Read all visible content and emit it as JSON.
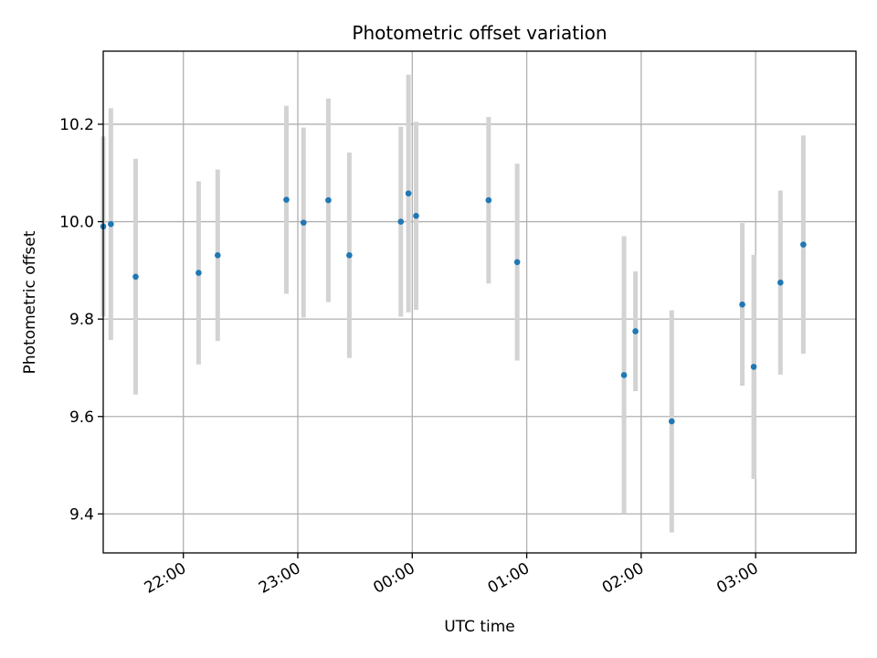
{
  "chart_data": {
    "type": "scatter",
    "title": "Photometric offset variation",
    "xlabel": "UTC time",
    "ylabel": "Photometric offset",
    "x_tick_labels": [
      "22:00",
      "23:00",
      "00:00",
      "01:00",
      "02:00",
      "03:00"
    ],
    "y_ticks": [
      9.4,
      9.6,
      9.8,
      10.0,
      10.2
    ],
    "y_tick_labels": [
      "9.4",
      "9.6",
      "9.8",
      "10.0",
      "10.2"
    ],
    "x_range": [
      "21:27",
      "03:52"
    ],
    "ylim": [
      9.32,
      10.35
    ],
    "grid": true,
    "colors": {
      "point": "#1f77b4",
      "errorbar": "#d3d3d3"
    },
    "series": [
      {
        "points": [
          {
            "t": "21:18",
            "y": 9.99,
            "err": 0.185
          },
          {
            "t": "21:22",
            "y": 9.995,
            "err": 0.238
          },
          {
            "t": "21:35",
            "y": 9.887,
            "err": 0.242
          },
          {
            "t": "22:08",
            "y": 9.895,
            "err": 0.188
          },
          {
            "t": "22:18",
            "y": 9.931,
            "err": 0.176
          },
          {
            "t": "22:54",
            "y": 10.045,
            "err": 0.193
          },
          {
            "t": "23:03",
            "y": 9.998,
            "err": 0.195
          },
          {
            "t": "23:16",
            "y": 10.044,
            "err": 0.209
          },
          {
            "t": "23:27",
            "y": 9.931,
            "err": 0.211
          },
          {
            "t": "23:54",
            "y": 10.0,
            "err": 0.195
          },
          {
            "t": "23:58",
            "y": 10.058,
            "err": 0.244
          },
          {
            "t": "00:02",
            "y": 10.012,
            "err": 0.193
          },
          {
            "t": "00:40",
            "y": 10.044,
            "err": 0.171
          },
          {
            "t": "00:55",
            "y": 9.917,
            "err": 0.202
          },
          {
            "t": "01:51",
            "y": 9.685,
            "err": 0.285
          },
          {
            "t": "01:57",
            "y": 9.775,
            "err": 0.123
          },
          {
            "t": "02:16",
            "y": 9.59,
            "err": 0.228
          },
          {
            "t": "02:53",
            "y": 9.83,
            "err": 0.167
          },
          {
            "t": "02:59",
            "y": 9.702,
            "err": 0.23
          },
          {
            "t": "03:13",
            "y": 9.875,
            "err": 0.189
          },
          {
            "t": "03:25",
            "y": 9.953,
            "err": 0.224
          }
        ]
      }
    ]
  }
}
